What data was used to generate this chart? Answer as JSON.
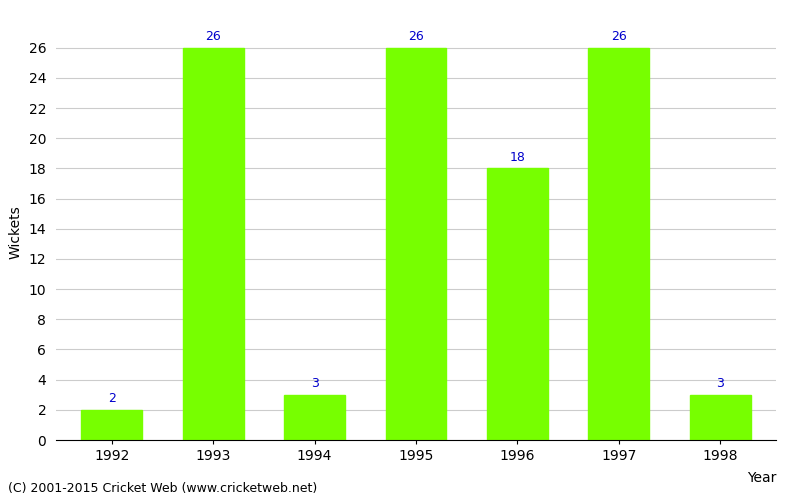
{
  "years": [
    "1992",
    "1993",
    "1994",
    "1995",
    "1996",
    "1997",
    "1998"
  ],
  "wickets": [
    2,
    26,
    3,
    26,
    18,
    26,
    3
  ],
  "bar_color": "#77ff00",
  "label_color": "#0000cc",
  "ylabel": "Wickets",
  "xlabel_label": "Year",
  "ylim": [
    0,
    27.5
  ],
  "yticks": [
    0,
    2,
    4,
    6,
    8,
    10,
    12,
    14,
    16,
    18,
    20,
    22,
    24,
    26
  ],
  "background_color": "#ffffff",
  "grid_color": "#cccccc",
  "footer": "(C) 2001-2015 Cricket Web (www.cricketweb.net)",
  "label_fontsize": 9,
  "axis_fontsize": 10,
  "footer_fontsize": 9,
  "bar_width": 0.6
}
